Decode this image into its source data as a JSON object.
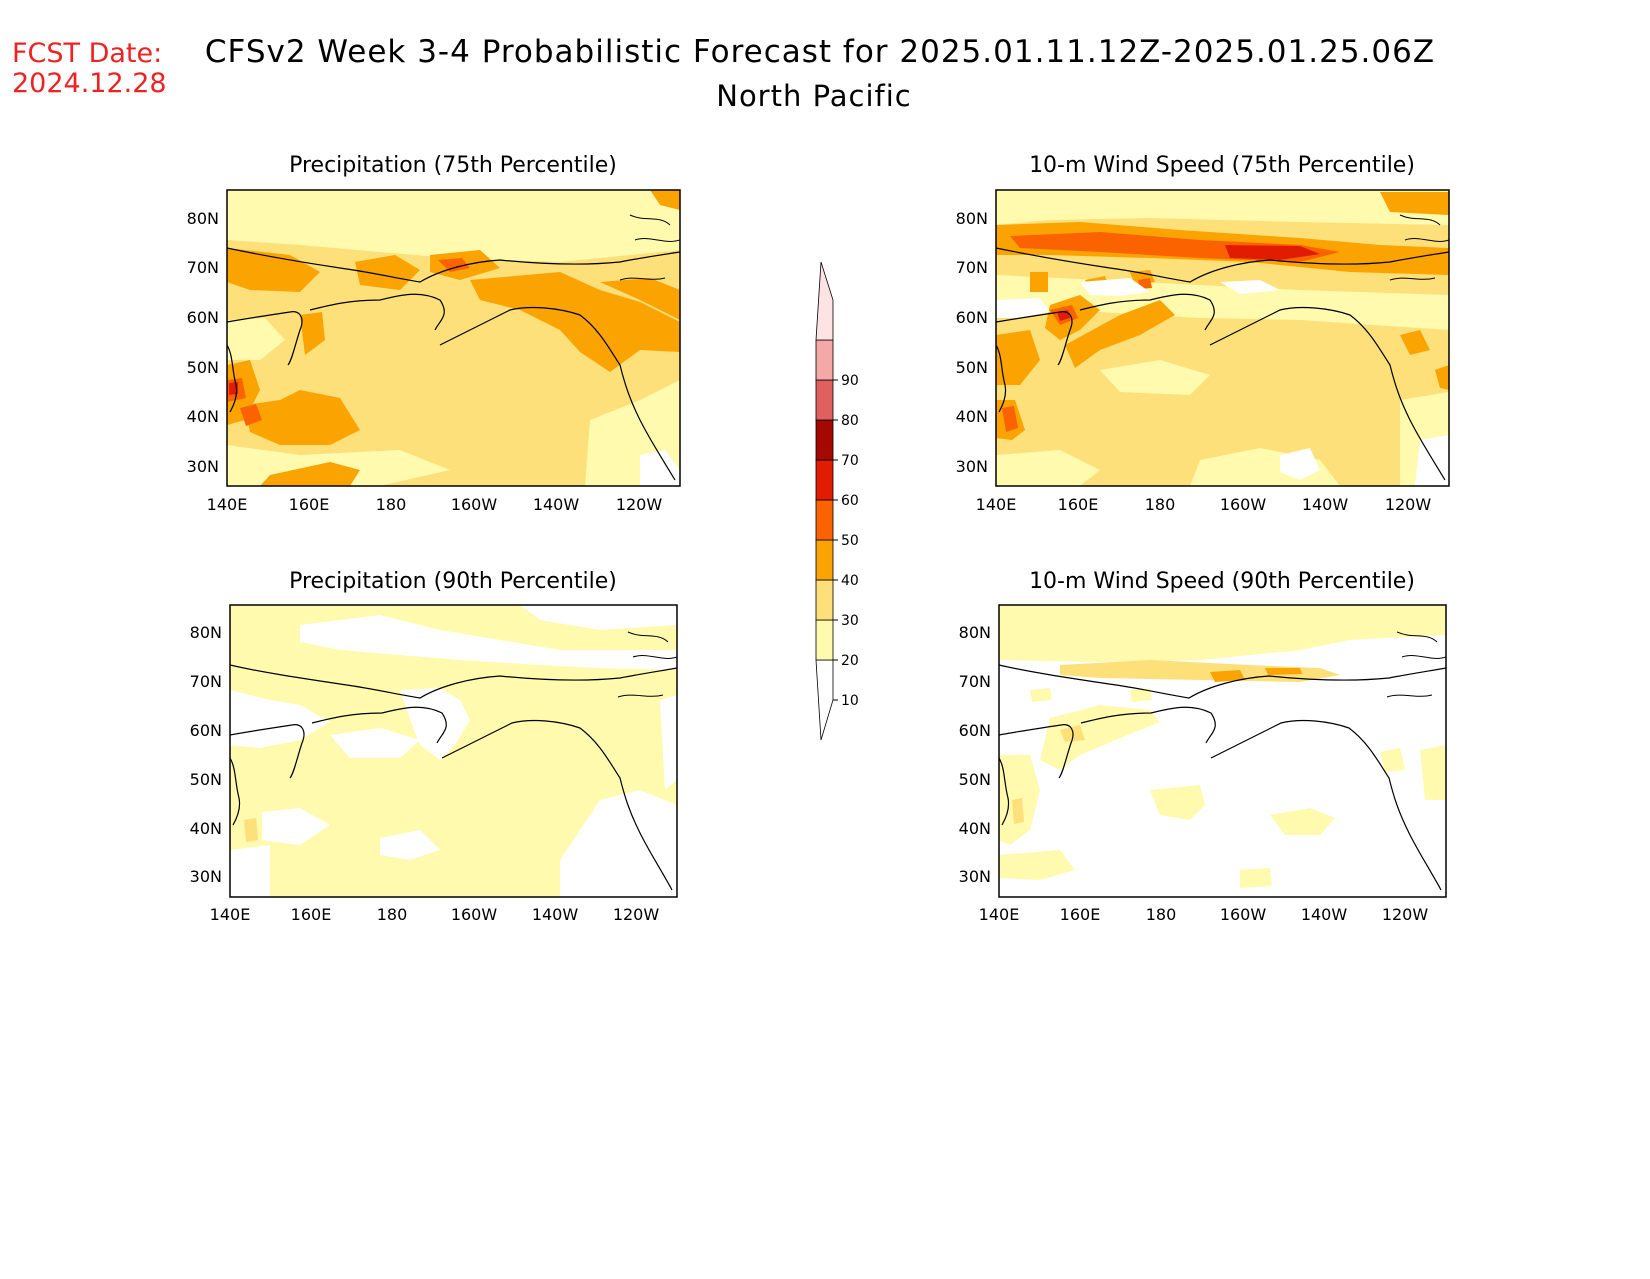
{
  "header": {
    "fcst_label": "FCST Date:",
    "fcst_date": "2024.12.28",
    "title": "CFSv2 Week 3-4 Probabilistic Forecast for 2025.01.11.12Z-2025.01.25.06Z",
    "subtitle": "North Pacific"
  },
  "colors": {
    "fcst": "#ee2222",
    "levels": [
      "#ffffff",
      "#fffaae",
      "#fde07a",
      "#fba300",
      "#fb6300",
      "#e21c00",
      "#a50800",
      "#e06060",
      "#f5a8a8",
      "#fde3e3"
    ]
  },
  "colorbar": {
    "labels": [
      "10",
      "20",
      "30",
      "40",
      "50",
      "60",
      "70",
      "80",
      "90"
    ]
  },
  "axes": {
    "lat_labels": [
      "80N",
      "70N",
      "60N",
      "50N",
      "40N",
      "30N"
    ],
    "lon_labels": [
      "140E",
      "160E",
      "180",
      "160W",
      "140W",
      "120W"
    ]
  },
  "panels": [
    {
      "id": "precip75",
      "title": "Precipitation (75th Percentile)"
    },
    {
      "id": "wind75",
      "title": "10-m Wind Speed (75th Percentile)"
    },
    {
      "id": "precip90",
      "title": "Precipitation (90th Percentile)"
    },
    {
      "id": "wind90",
      "title": "10-m Wind Speed (90th Percentile)"
    }
  ]
}
